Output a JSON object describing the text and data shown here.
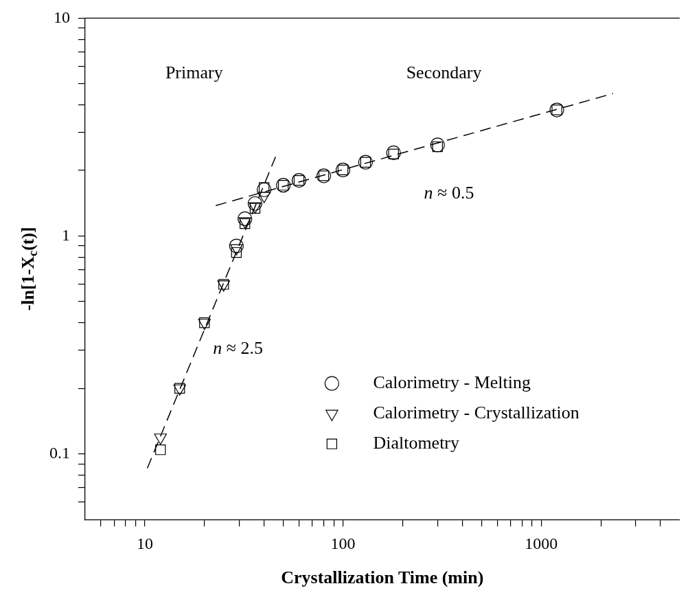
{
  "chart_data": {
    "type": "scatter",
    "xlabel": "Crystallization Time (min)",
    "ylabel": "-ln[1-X$_{c}$(t)]",
    "log": "xy",
    "xlim": [
      5,
      5000
    ],
    "ylim": [
      0.05,
      10
    ],
    "xticks": [
      {
        "value": 6,
        "label": null
      },
      {
        "value": 7,
        "label": null
      },
      {
        "value": 8,
        "label": null
      },
      {
        "value": 9,
        "label": null
      },
      10,
      {
        "value": 20,
        "label": null
      },
      {
        "value": 30,
        "label": null
      },
      {
        "value": 40,
        "label": null
      },
      {
        "value": 50,
        "label": null
      },
      {
        "value": 60,
        "label": null
      },
      {
        "value": 70,
        "label": null
      },
      {
        "value": 80,
        "label": null
      },
      {
        "value": 90,
        "label": null
      },
      100,
      {
        "value": 200,
        "label": null
      },
      {
        "value": 300,
        "label": null
      },
      {
        "value": 400,
        "label": null
      },
      {
        "value": 500,
        "label": null
      },
      {
        "value": 600,
        "label": null
      },
      {
        "value": 700,
        "label": null
      },
      {
        "value": 800,
        "label": null
      },
      {
        "value": 900,
        "label": null
      },
      1000,
      {
        "value": 2000,
        "label": null
      },
      {
        "value": 3000,
        "label": null
      },
      {
        "value": 4000,
        "label": null
      }
    ],
    "yticks": [
      {
        "value": 0.06,
        "label": null
      },
      {
        "value": 0.07,
        "label": null
      },
      {
        "value": 0.08,
        "label": null
      },
      {
        "value": 0.09,
        "label": null
      },
      0.1,
      {
        "value": 0.2,
        "label": null
      },
      {
        "value": 0.3,
        "label": null
      },
      {
        "value": 0.4,
        "label": null
      },
      {
        "value": 0.5,
        "label": null
      },
      {
        "value": 0.6,
        "label": null
      },
      {
        "value": 0.7,
        "label": null
      },
      {
        "value": 0.8,
        "label": null
      },
      {
        "value": 0.9,
        "label": null
      },
      1,
      {
        "value": 2,
        "label": null
      },
      {
        "value": 3,
        "label": null
      },
      {
        "value": 4,
        "label": null
      },
      {
        "value": 5,
        "label": null
      },
      {
        "value": 6,
        "label": null
      },
      {
        "value": 7,
        "label": null
      },
      {
        "value": 8,
        "label": null
      },
      {
        "value": 9,
        "label": null
      },
      10
    ],
    "legend": "bottom right",
    "annotations": [
      "Primary",
      "Secondary",
      "n ≈ 2.5",
      "n ≈ 0.5"
    ],
    "series": [
      {
        "name": "Calorimetry - Melting",
        "color": "#000000",
        "marker": "circle",
        "x": [
          29,
          32,
          36,
          40,
          50,
          60,
          80,
          100,
          130,
          180,
          300,
          1200
        ],
        "values": [
          0.9,
          1.2,
          1.41,
          1.63,
          1.71,
          1.8,
          1.89,
          2.01,
          2.18,
          2.41,
          2.62,
          3.79
        ]
      },
      {
        "name": "Calorimetry - Crystallization",
        "color": "#000000",
        "marker": "triangle",
        "x": [
          12,
          15,
          20,
          25,
          29,
          32,
          36,
          40
        ],
        "values": [
          0.119,
          0.2,
          0.4,
          0.6,
          0.88,
          1.17,
          1.37,
          1.53
        ]
      },
      {
        "name": "Dialtometry",
        "color": "#000000",
        "marker": "square",
        "x": [
          12,
          15,
          20,
          25,
          29,
          32,
          36,
          40,
          50,
          60,
          80,
          100,
          130,
          180,
          300,
          1200
        ],
        "values": [
          0.1045,
          0.2,
          0.4,
          0.6,
          0.84,
          1.14,
          1.34,
          1.67,
          1.71,
          1.8,
          1.89,
          2.01,
          2.18,
          2.38,
          2.57,
          3.79
        ]
      },
      {
        "type": "line",
        "color": "#000000",
        "marker": "none",
        "line_style": "dashed",
        "x": [
          10.3,
          45.7
        ],
        "values": [
          0.086,
          2.31
        ]
      },
      {
        "type": "line",
        "color": "#000000",
        "marker": "none",
        "line_style": "dashed",
        "x": [
          22.8,
          2304
        ],
        "values": [
          1.38,
          4.51
        ]
      }
    ]
  }
}
